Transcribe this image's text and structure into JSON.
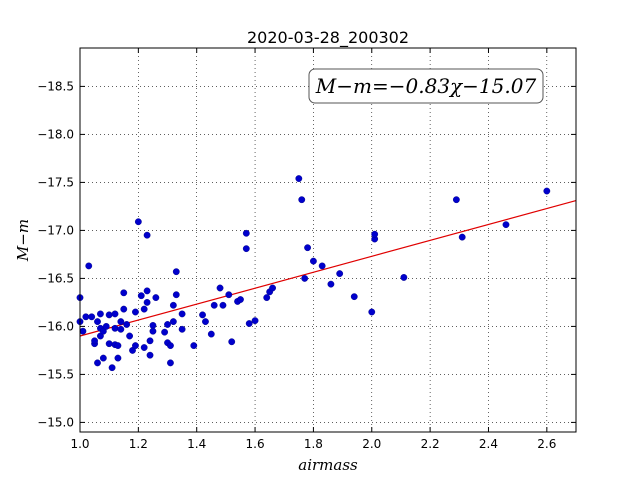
{
  "chart_data": {
    "type": "scatter",
    "title": "2020-03-28_200302",
    "xlabel": "airmass",
    "ylabel": "M−m",
    "xlim": [
      1.0,
      2.7
    ],
    "ylim": [
      -18.9,
      -14.9
    ],
    "y_inverted": true,
    "grid": true,
    "x_ticks": [
      1.0,
      1.2,
      1.4,
      1.6,
      1.8,
      2.0,
      2.2,
      2.4,
      2.6
    ],
    "y_ticks": [
      -15.0,
      -15.5,
      -16.0,
      -16.5,
      -17.0,
      -17.5,
      -18.0,
      -18.5
    ],
    "x_tick_labels": [
      "1.0",
      "1.2",
      "1.4",
      "1.6",
      "1.8",
      "2.0",
      "2.2",
      "2.4",
      "2.6"
    ],
    "y_tick_labels": [
      "−15.0",
      "−15.5",
      "−16.0",
      "−16.5",
      "−17.0",
      "−17.5",
      "−18.0",
      "−18.5"
    ],
    "annotation": "M−m=−0.83χ−15.07",
    "fit": {
      "slope": -0.83,
      "intercept": -15.07,
      "color": "#e00000"
    },
    "point_color": "#0000cc",
    "points": [
      [
        1.0,
        -16.3
      ],
      [
        1.0,
        -16.05
      ],
      [
        1.01,
        -15.95
      ],
      [
        1.02,
        -16.1
      ],
      [
        1.03,
        -16.63
      ],
      [
        1.04,
        -16.1
      ],
      [
        1.05,
        -15.82
      ],
      [
        1.05,
        -15.85
      ],
      [
        1.06,
        -15.62
      ],
      [
        1.06,
        -16.05
      ],
      [
        1.07,
        -15.9
      ],
      [
        1.07,
        -15.98
      ],
      [
        1.07,
        -16.13
      ],
      [
        1.08,
        -15.67
      ],
      [
        1.08,
        -15.95
      ],
      [
        1.09,
        -16.0
      ],
      [
        1.1,
        -15.82
      ],
      [
        1.1,
        -16.12
      ],
      [
        1.11,
        -15.57
      ],
      [
        1.12,
        -15.81
      ],
      [
        1.12,
        -15.98
      ],
      [
        1.12,
        -16.13
      ],
      [
        1.13,
        -15.67
      ],
      [
        1.13,
        -15.8
      ],
      [
        1.14,
        -15.97
      ],
      [
        1.14,
        -16.05
      ],
      [
        1.15,
        -16.35
      ],
      [
        1.15,
        -16.18
      ],
      [
        1.16,
        -16.02
      ],
      [
        1.17,
        -15.9
      ],
      [
        1.18,
        -15.75
      ],
      [
        1.19,
        -15.8
      ],
      [
        1.19,
        -16.15
      ],
      [
        1.2,
        -17.09
      ],
      [
        1.21,
        -16.32
      ],
      [
        1.22,
        -15.78
      ],
      [
        1.22,
        -16.18
      ],
      [
        1.23,
        -16.95
      ],
      [
        1.23,
        -16.37
      ],
      [
        1.23,
        -16.25
      ],
      [
        1.24,
        -15.85
      ],
      [
        1.24,
        -15.7
      ],
      [
        1.25,
        -16.01
      ],
      [
        1.25,
        -15.95
      ],
      [
        1.26,
        -16.3
      ],
      [
        1.29,
        -15.94
      ],
      [
        1.3,
        -15.83
      ],
      [
        1.3,
        -16.02
      ],
      [
        1.31,
        -15.62
      ],
      [
        1.31,
        -15.8
      ],
      [
        1.32,
        -16.05
      ],
      [
        1.32,
        -16.22
      ],
      [
        1.33,
        -16.57
      ],
      [
        1.33,
        -16.33
      ],
      [
        1.35,
        -15.97
      ],
      [
        1.35,
        -16.13
      ],
      [
        1.39,
        -15.8
      ],
      [
        1.42,
        -16.12
      ],
      [
        1.43,
        -16.05
      ],
      [
        1.45,
        -15.92
      ],
      [
        1.46,
        -16.22
      ],
      [
        1.48,
        -16.4
      ],
      [
        1.49,
        -16.22
      ],
      [
        1.51,
        -16.33
      ],
      [
        1.52,
        -15.84
      ],
      [
        1.54,
        -16.26
      ],
      [
        1.55,
        -16.28
      ],
      [
        1.57,
        -16.97
      ],
      [
        1.57,
        -16.81
      ],
      [
        1.58,
        -16.03
      ],
      [
        1.6,
        -16.06
      ],
      [
        1.64,
        -16.3
      ],
      [
        1.65,
        -16.36
      ],
      [
        1.66,
        -16.4
      ],
      [
        1.75,
        -17.54
      ],
      [
        1.76,
        -17.32
      ],
      [
        1.77,
        -16.5
      ],
      [
        1.78,
        -16.82
      ],
      [
        1.8,
        -16.68
      ],
      [
        1.83,
        -16.63
      ],
      [
        1.86,
        -16.44
      ],
      [
        1.89,
        -16.55
      ],
      [
        1.94,
        -16.31
      ],
      [
        2.0,
        -16.15
      ],
      [
        2.01,
        -16.91
      ],
      [
        2.01,
        -16.96
      ],
      [
        2.11,
        -16.51
      ],
      [
        2.29,
        -17.32
      ],
      [
        2.31,
        -16.93
      ],
      [
        2.46,
        -17.06
      ],
      [
        2.6,
        -17.41
      ]
    ]
  }
}
